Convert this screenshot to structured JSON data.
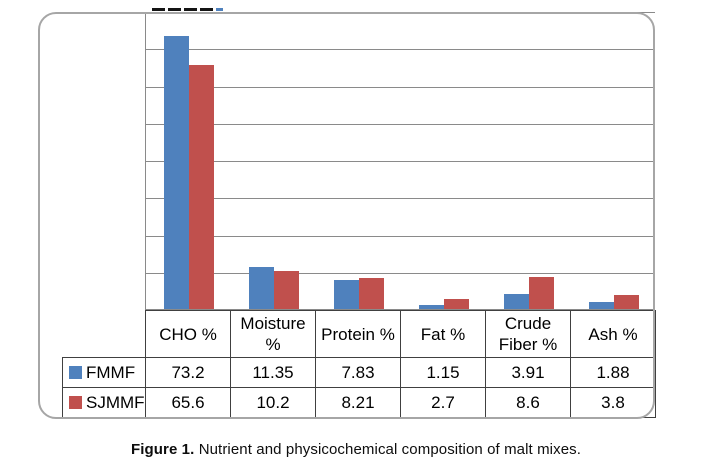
{
  "figure": {
    "caption_label": "Figure 1.",
    "caption_text": "Nutrient and physicochemical composition of malt mixes."
  },
  "chart_data": {
    "type": "bar",
    "title": "",
    "xlabel": "",
    "ylabel": "",
    "categories": [
      "CHO %",
      "Moisture %",
      "Protein %",
      "Fat %",
      "Crude Fiber %",
      "Ash %"
    ],
    "series": [
      {
        "name": "FMMF",
        "color": "#4F81BD",
        "values": [
          73.2,
          11.35,
          7.83,
          1.15,
          3.91,
          1.88
        ]
      },
      {
        "name": "SJMMF",
        "color": "#C0504D",
        "values": [
          65.6,
          10.2,
          8.21,
          2.7,
          8.6,
          3.8
        ]
      }
    ],
    "ylim": [
      0,
      80
    ],
    "gridline_step": 10,
    "grid": true,
    "axis_tick_labels_visible": false,
    "legend_position": "data-table-left-column",
    "data_table_shown": true
  }
}
